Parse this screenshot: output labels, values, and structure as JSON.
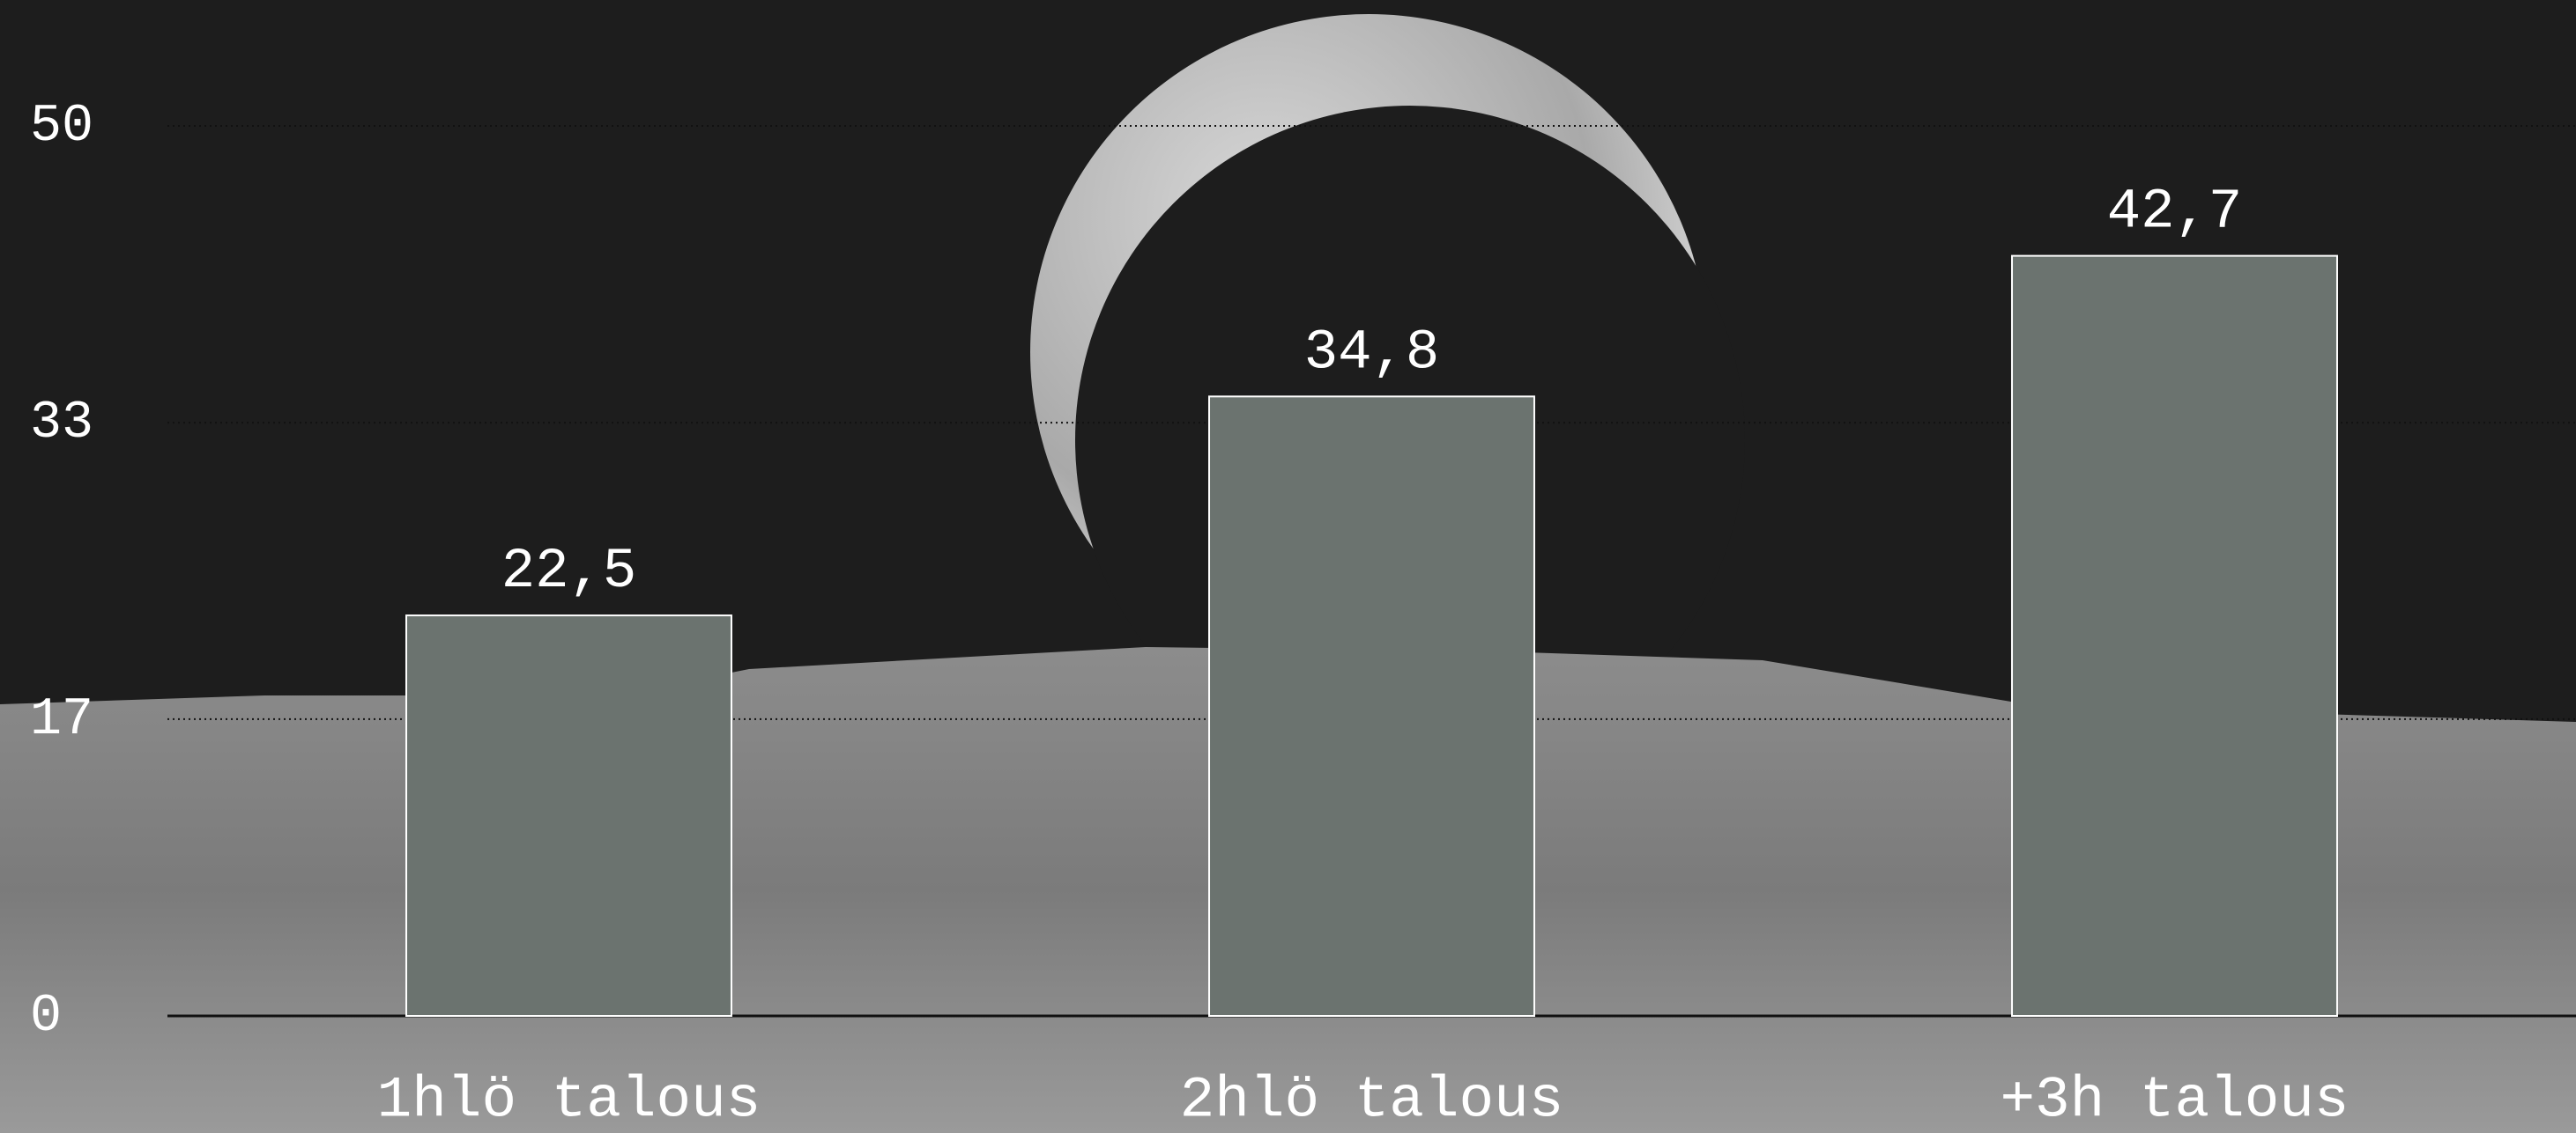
{
  "chart_data": {
    "type": "bar",
    "categories": [
      "1hlö talous",
      "2hlö talous",
      "+3h talous"
    ],
    "values": [
      22.5,
      34.8,
      42.7
    ],
    "value_labels": [
      "22,5",
      "34,8",
      "42,7"
    ],
    "color": "#6b736f",
    "ylim": [
      0,
      50
    ],
    "yticks": [
      0,
      {
        "value": 16.67,
        "label": "17"
      },
      {
        "value": 33.33,
        "label": "33"
      },
      50
    ],
    "grid": true
  }
}
